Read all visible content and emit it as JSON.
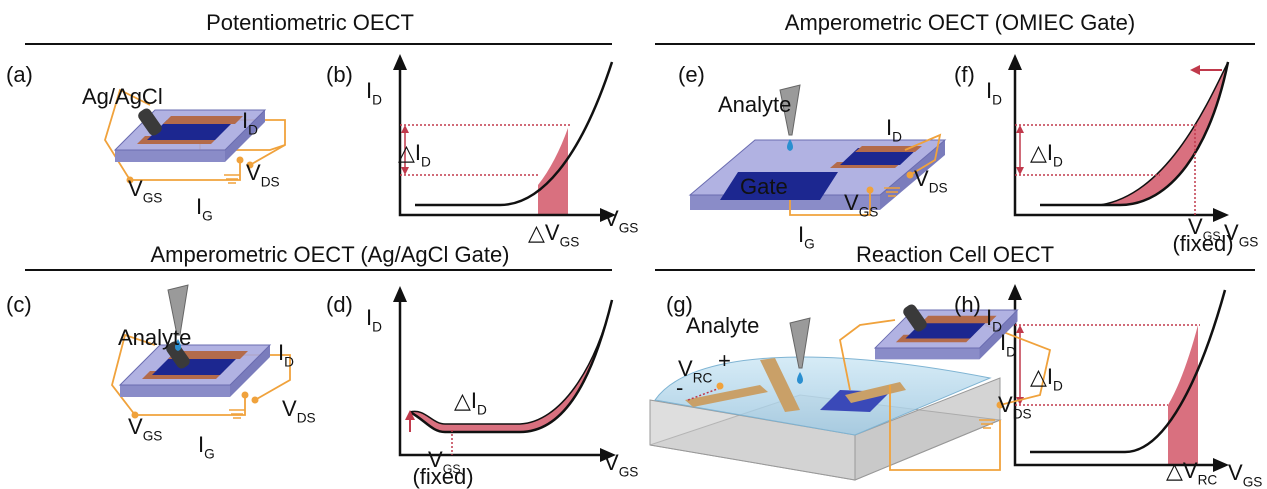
{
  "sections": [
    {
      "title": "Potentiometric OECT"
    },
    {
      "title": "Amperometric OECT (OMIEC Gate)"
    },
    {
      "title": "Amperometric OECT (Ag/AgCl Gate)"
    },
    {
      "title": "Reaction Cell  OECT"
    }
  ],
  "panels": [
    {
      "label": "(a)",
      "electrode": "Ag/AgCl",
      "drain_current": {
        "text": "I",
        "sub": "D"
      },
      "drain_voltage": {
        "text": "V",
        "sub": "DS"
      },
      "gate_voltage": {
        "text": "V",
        "sub": "GS"
      },
      "gate_current": {
        "text": "I",
        "sub": "G"
      }
    },
    {
      "label": "(b)",
      "y_axis": {
        "text": "I",
        "sub": "D"
      },
      "x_axis": {
        "text": "V",
        "sub": "GS"
      },
      "delta_current": {
        "text": "△I",
        "sub": "D"
      },
      "delta_voltage": {
        "text": "△V",
        "sub": "GS"
      }
    },
    {
      "label": "(c)",
      "analyte": "Analyte",
      "drain_current": {
        "text": "I",
        "sub": "D"
      },
      "drain_voltage": {
        "text": "V",
        "sub": "DS"
      },
      "gate_voltage": {
        "text": "V",
        "sub": "GS"
      },
      "gate_current": {
        "text": "I",
        "sub": "G"
      }
    },
    {
      "label": "(d)",
      "y_axis": {
        "text": "I",
        "sub": "D"
      },
      "x_axis": {
        "text": "V",
        "sub": "GS"
      },
      "delta_current": {
        "text": "△I",
        "sub": "D"
      },
      "fixed_voltage": {
        "text": "V",
        "sub": "GS",
        "note": "(fixed)"
      }
    },
    {
      "label": "(e)",
      "analyte": "Analyte",
      "gate": "Gate",
      "drain_current": {
        "text": "I",
        "sub": "D"
      },
      "drain_voltage": {
        "text": "V",
        "sub": "DS"
      },
      "gate_voltage": {
        "text": "V",
        "sub": "GS"
      },
      "gate_current": {
        "text": "I",
        "sub": "G"
      }
    },
    {
      "label": "(f)",
      "y_axis": {
        "text": "I",
        "sub": "D"
      },
      "x_axis": {
        "text": "V",
        "sub": "GS"
      },
      "delta_current": {
        "text": "△I",
        "sub": "D"
      },
      "fixed_voltage": {
        "text": "V",
        "sub": "GS",
        "note": "(fixed)"
      }
    },
    {
      "label": "(g)",
      "analyte": "Analyte",
      "cell_voltage": {
        "text": "V",
        "sub": "RC"
      },
      "plus": "+",
      "minus": "-",
      "drain_current": {
        "text": "I",
        "sub": "D"
      },
      "drain_voltage": {
        "text": "V",
        "sub": "DS"
      }
    },
    {
      "label": "(h)",
      "y_axis": {
        "text": "I",
        "sub": "D"
      },
      "x_axis": {
        "text": "V",
        "sub": "GS"
      },
      "delta_current": {
        "text": "△I",
        "sub": "D"
      },
      "delta_voltage": {
        "text": "△V",
        "sub": "RC"
      }
    }
  ]
}
